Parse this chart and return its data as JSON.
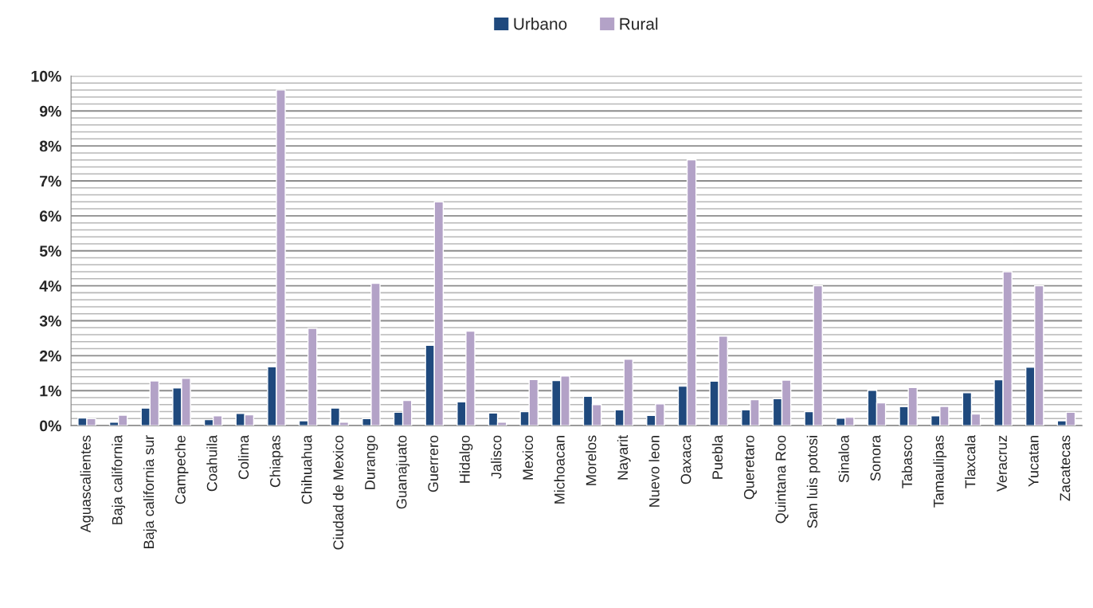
{
  "chart_data": {
    "type": "bar",
    "categories": [
      "Aguascalientes",
      "Baja california",
      "Baja california sur",
      "Campeche",
      "Coahuila",
      "Colima",
      "Chiapas",
      "Chihuahua",
      "Ciudad de Mexico",
      "Durango",
      "Guanajuato",
      "Guerrero",
      "Hidalgo",
      "Jalisco",
      "Mexico",
      "Michoacan",
      "Morelos",
      "Nayarit",
      "Nuevo leon",
      "Oaxaca",
      "Puebla",
      "Queretaro",
      "Quintana Roo",
      "San luis potosi",
      "Sinaloa",
      "Sonora",
      "Tabasco",
      "Tamaulipas",
      "Tlaxcala",
      "Veracruz",
      "Yucatan",
      "Zacatecas"
    ],
    "series": [
      {
        "name": "Urbano",
        "color": "#1f497d",
        "values": [
          0.22,
          0.1,
          0.5,
          1.08,
          0.17,
          0.35,
          1.68,
          0.14,
          0.5,
          0.2,
          0.38,
          2.3,
          0.68,
          0.36,
          0.4,
          1.29,
          0.84,
          0.45,
          0.29,
          1.13,
          1.27,
          0.45,
          0.77,
          0.4,
          0.21,
          1.01,
          0.54,
          0.28,
          0.94,
          1.31,
          1.67,
          0.14
        ]
      },
      {
        "name": "Rural",
        "color": "#b3a2c7",
        "values": [
          0.2,
          0.3,
          1.28,
          1.35,
          0.28,
          0.31,
          9.6,
          2.78,
          0.1,
          4.07,
          0.72,
          6.4,
          2.7,
          0.1,
          1.32,
          1.42,
          0.6,
          1.9,
          0.62,
          7.6,
          2.56,
          0.74,
          1.3,
          4.0,
          0.24,
          0.65,
          1.09,
          0.55,
          0.33,
          4.4,
          4.0,
          0.38
        ]
      }
    ],
    "ylim": [
      0,
      10
    ],
    "yticks": [
      {
        "value": 0,
        "label": "0%"
      },
      {
        "value": 1,
        "label": "1%"
      },
      {
        "value": 2,
        "label": "2%"
      },
      {
        "value": 3,
        "label": "3%"
      },
      {
        "value": 4,
        "label": "4%"
      },
      {
        "value": 5,
        "label": "5%"
      },
      {
        "value": 6,
        "label": "6%"
      },
      {
        "value": 7,
        "label": "7%"
      },
      {
        "value": 8,
        "label": "8%"
      },
      {
        "value": 9,
        "label": "9%"
      },
      {
        "value": 10,
        "label": "10%"
      }
    ],
    "grid": "y",
    "legend": "top"
  }
}
